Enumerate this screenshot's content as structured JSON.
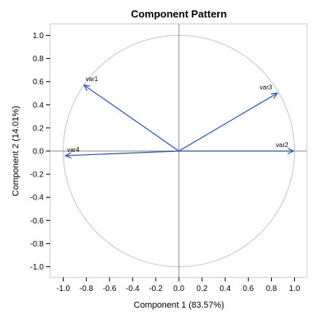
{
  "chart_data": {
    "type": "scatter",
    "title": "Component Pattern",
    "xlabel": "Component 1 (83.57%)",
    "ylabel": "Component 2 (14.01%)",
    "xlim": [
      -1.1,
      1.1
    ],
    "ylim": [
      -1.1,
      1.1
    ],
    "xticks": [
      "-1.0",
      "-0.8",
      "-0.6",
      "-0.4",
      "-0.2",
      "0.0",
      "0.2",
      "0.4",
      "0.6",
      "0.8",
      "1.0"
    ],
    "yticks": [
      "-1.0",
      "-0.8",
      "-0.6",
      "-0.4",
      "-0.2",
      "0.0",
      "0.2",
      "0.4",
      "0.6",
      "0.8",
      "1.0"
    ],
    "unit_circle": true,
    "reference_lines": [
      0,
      0
    ],
    "vectors": [
      {
        "label": "var1",
        "x": -0.82,
        "y": 0.57
      },
      {
        "label": "var2",
        "x": 0.99,
        "y": 0.0
      },
      {
        "label": "var3",
        "x": 0.85,
        "y": 0.5
      },
      {
        "label": "var4",
        "x": -0.98,
        "y": -0.04
      }
    ],
    "colors": {
      "vector": "#2a52a8",
      "circle": "#b8c4e4",
      "refline": "#8c8c8c",
      "frame": "#c8c8c8"
    }
  }
}
